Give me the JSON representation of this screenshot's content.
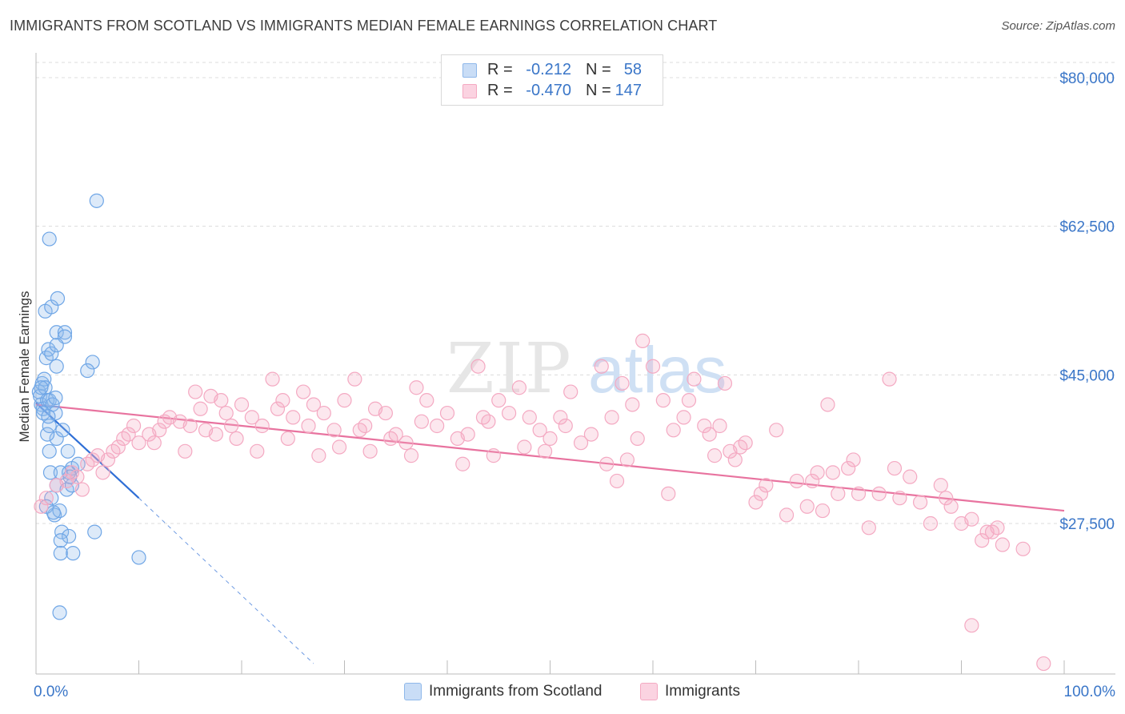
{
  "title": "IMMIGRANTS FROM SCOTLAND VS IMMIGRANTS MEDIAN FEMALE EARNINGS CORRELATION CHART",
  "source": "Source: ZipAtlas.com",
  "watermark": {
    "zip": "ZIP",
    "atlas": "atlas"
  },
  "legend": {
    "rows": [
      {
        "r_label": "R =",
        "r_value": "-0.212",
        "n_label": "N =",
        "n_value": "58",
        "color": "#8fb8ea"
      },
      {
        "r_label": "R =",
        "r_value": "-0.470",
        "n_label": "N =",
        "n_value": "147",
        "color": "#f4a9c2"
      }
    ]
  },
  "bottom_legend": [
    {
      "label": "Immigrants from Scotland",
      "color": "#8fb8ea"
    },
    {
      "label": "Immigrants",
      "color": "#f4a9c2"
    }
  ],
  "chart_data": {
    "type": "scatter",
    "xlabel": "",
    "ylabel": "Median Female Earnings",
    "xlim": [
      0,
      100
    ],
    "ylim": [
      10500,
      82000
    ],
    "x_tick_labels": [
      "0.0%",
      "100.0%"
    ],
    "y_ticks": [
      {
        "value": 27500,
        "label": "$27,500"
      },
      {
        "value": 45000,
        "label": "$45,000"
      },
      {
        "value": 62500,
        "label": "$62,500"
      },
      {
        "value": 80000,
        "label": "$80,000"
      }
    ],
    "grid": true,
    "legend_position": "top-center",
    "series": [
      {
        "name": "Immigrants from Scotland",
        "color": "#6fa6e6",
        "trend": {
          "x0": 0,
          "y0": 41700,
          "x1": 10,
          "y1": 30500,
          "dash_to_x": 27,
          "dash_to_y": 11000,
          "color": "#2f6fd6"
        },
        "points": [
          [
            0.3,
            43000
          ],
          [
            0.5,
            41500
          ],
          [
            0.4,
            42500
          ],
          [
            0.6,
            44000
          ],
          [
            0.7,
            41000
          ],
          [
            0.8,
            44500
          ],
          [
            0.9,
            43500
          ],
          [
            1.1,
            42000
          ],
          [
            1.3,
            42000
          ],
          [
            1.0,
            47000
          ],
          [
            1.2,
            48000
          ],
          [
            1.5,
            47500
          ],
          [
            0.9,
            52500
          ],
          [
            1.5,
            53000
          ],
          [
            2.0,
            50000
          ],
          [
            2.1,
            54000
          ],
          [
            2.8,
            50000
          ],
          [
            2.8,
            49500
          ],
          [
            2.0,
            48500
          ],
          [
            2.0,
            46000
          ],
          [
            1.6,
            41500
          ],
          [
            1.9,
            40500
          ],
          [
            2.0,
            37500
          ],
          [
            1.3,
            36000
          ],
          [
            2.6,
            38500
          ],
          [
            3.1,
            36000
          ],
          [
            3.5,
            34000
          ],
          [
            4.1,
            34500
          ],
          [
            1.4,
            33500
          ],
          [
            2.4,
            33500
          ],
          [
            3.2,
            33500
          ],
          [
            2.0,
            32000
          ],
          [
            3.0,
            31500
          ],
          [
            3.5,
            32000
          ],
          [
            1.1,
            38000
          ],
          [
            1.3,
            39000
          ],
          [
            1.5,
            30500
          ],
          [
            1.8,
            28500
          ],
          [
            2.3,
            29000
          ],
          [
            2.5,
            26500
          ],
          [
            3.2,
            26000
          ],
          [
            2.4,
            25500
          ],
          [
            2.4,
            24000
          ],
          [
            3.6,
            24000
          ],
          [
            5.7,
            26500
          ],
          [
            10.0,
            23500
          ],
          [
            5.5,
            46500
          ],
          [
            5.0,
            45500
          ],
          [
            1.3,
            61000
          ],
          [
            5.9,
            65500
          ],
          [
            2.3,
            17000
          ],
          [
            1.0,
            29500
          ],
          [
            0.5,
            43500
          ],
          [
            0.7,
            40500
          ],
          [
            1.7,
            28800
          ],
          [
            3.3,
            33000
          ],
          [
            1.9,
            42300
          ],
          [
            1.2,
            40100
          ]
        ]
      },
      {
        "name": "Immigrants",
        "color": "#f4a9c2",
        "trend": {
          "x0": 0,
          "y0": 41500,
          "x1": 100,
          "y1": 29000,
          "color": "#e8739f"
        },
        "points": [
          [
            0.5,
            29500
          ],
          [
            1.0,
            30500
          ],
          [
            2.0,
            32000
          ],
          [
            3.0,
            32500
          ],
          [
            3.5,
            33500
          ],
          [
            4.0,
            33000
          ],
          [
            5.0,
            34500
          ],
          [
            5.5,
            35000
          ],
          [
            6.0,
            35500
          ],
          [
            7.0,
            35000
          ],
          [
            7.5,
            36000
          ],
          [
            8.0,
            36500
          ],
          [
            8.5,
            37500
          ],
          [
            9.0,
            38000
          ],
          [
            9.5,
            39000
          ],
          [
            10.0,
            37000
          ],
          [
            11.0,
            38000
          ],
          [
            12.0,
            38500
          ],
          [
            12.5,
            39500
          ],
          [
            13.0,
            40000
          ],
          [
            14.0,
            39500
          ],
          [
            15.0,
            39000
          ],
          [
            15.5,
            43000
          ],
          [
            16.0,
            41000
          ],
          [
            17.0,
            42500
          ],
          [
            18.0,
            42000
          ],
          [
            18.5,
            40500
          ],
          [
            19.0,
            39000
          ],
          [
            20.0,
            41500
          ],
          [
            21.0,
            40000
          ],
          [
            22.0,
            39000
          ],
          [
            23.0,
            44500
          ],
          [
            23.5,
            41000
          ],
          [
            24.0,
            42000
          ],
          [
            25.0,
            40000
          ],
          [
            26.0,
            43000
          ],
          [
            27.0,
            41500
          ],
          [
            28.0,
            40500
          ],
          [
            29.0,
            38500
          ],
          [
            30.0,
            42000
          ],
          [
            31.0,
            44500
          ],
          [
            32.0,
            39000
          ],
          [
            33.0,
            41000
          ],
          [
            34.0,
            40500
          ],
          [
            35.0,
            38000
          ],
          [
            36.0,
            37000
          ],
          [
            37.0,
            43500
          ],
          [
            38.0,
            42000
          ],
          [
            39.0,
            39000
          ],
          [
            40.0,
            40500
          ],
          [
            41.0,
            37500
          ],
          [
            42.0,
            38000
          ],
          [
            43.0,
            46000
          ],
          [
            44.0,
            39500
          ],
          [
            45.0,
            42000
          ],
          [
            46.0,
            40500
          ],
          [
            47.0,
            43500
          ],
          [
            48.0,
            40000
          ],
          [
            49.0,
            38500
          ],
          [
            50.0,
            37500
          ],
          [
            51.0,
            40000
          ],
          [
            52.0,
            43000
          ],
          [
            53.0,
            37000
          ],
          [
            54.0,
            38000
          ],
          [
            55.0,
            46000
          ],
          [
            56.0,
            40000
          ],
          [
            57.0,
            44000
          ],
          [
            58.0,
            41500
          ],
          [
            59.0,
            49000
          ],
          [
            60.0,
            46000
          ],
          [
            61.0,
            42000
          ],
          [
            62.0,
            38500
          ],
          [
            63.0,
            40000
          ],
          [
            64.0,
            44500
          ],
          [
            65.0,
            39000
          ],
          [
            66.0,
            35500
          ],
          [
            67.0,
            44000
          ],
          [
            68.0,
            35000
          ],
          [
            69.0,
            37000
          ],
          [
            70.0,
            30000
          ],
          [
            71.0,
            32000
          ],
          [
            72.0,
            38500
          ],
          [
            73.0,
            28500
          ],
          [
            74.0,
            32500
          ],
          [
            75.0,
            29500
          ],
          [
            76.0,
            33500
          ],
          [
            77.0,
            41500
          ],
          [
            78.0,
            31000
          ],
          [
            79.0,
            34000
          ],
          [
            80.0,
            31000
          ],
          [
            81.0,
            27000
          ],
          [
            82.0,
            31000
          ],
          [
            83.0,
            44500
          ],
          [
            84.0,
            30500
          ],
          [
            85.0,
            33000
          ],
          [
            86.0,
            30000
          ],
          [
            87.0,
            27500
          ],
          [
            88.0,
            32000
          ],
          [
            89.0,
            29500
          ],
          [
            90.0,
            27500
          ],
          [
            91.0,
            28000
          ],
          [
            92.0,
            25500
          ],
          [
            93.0,
            26500
          ],
          [
            94.0,
            25000
          ],
          [
            75.5,
            32500
          ],
          [
            79.5,
            35000
          ],
          [
            55.5,
            34500
          ],
          [
            56.5,
            32500
          ],
          [
            57.5,
            35000
          ],
          [
            61.5,
            31000
          ],
          [
            68.5,
            36500
          ],
          [
            70.5,
            31000
          ],
          [
            76.5,
            29000
          ],
          [
            77.5,
            33500
          ],
          [
            83.5,
            34000
          ],
          [
            88.5,
            30500
          ],
          [
            92.5,
            26500
          ],
          [
            93.5,
            27000
          ],
          [
            96.0,
            24500
          ],
          [
            91.0,
            15500
          ],
          [
            98.0,
            11000
          ],
          [
            27.5,
            35500
          ],
          [
            32.5,
            36000
          ],
          [
            34.5,
            37500
          ],
          [
            41.5,
            34500
          ],
          [
            47.5,
            36500
          ],
          [
            21.5,
            36000
          ],
          [
            17.5,
            38000
          ],
          [
            14.5,
            36000
          ],
          [
            24.5,
            37500
          ],
          [
            29.5,
            36500
          ],
          [
            36.5,
            35500
          ],
          [
            44.5,
            35500
          ],
          [
            49.5,
            36000
          ],
          [
            51.5,
            39000
          ],
          [
            58.5,
            37500
          ],
          [
            63.5,
            42000
          ],
          [
            65.5,
            38000
          ],
          [
            66.5,
            39000
          ],
          [
            67.5,
            36000
          ],
          [
            43.5,
            40000
          ],
          [
            37.5,
            39500
          ],
          [
            31.5,
            38500
          ],
          [
            26.5,
            39000
          ],
          [
            19.5,
            37500
          ],
          [
            16.5,
            38500
          ],
          [
            11.5,
            37000
          ],
          [
            6.5,
            33500
          ],
          [
            4.5,
            31500
          ]
        ]
      }
    ]
  }
}
